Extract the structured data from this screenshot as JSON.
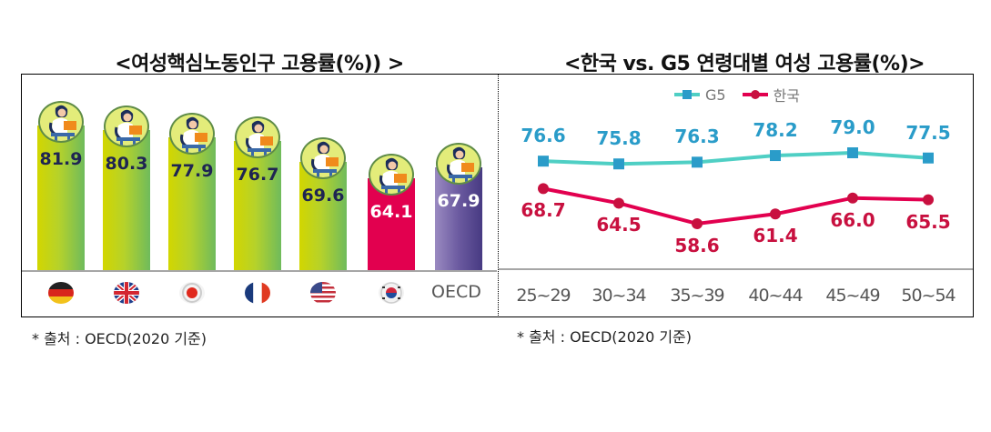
{
  "left_chart": {
    "title": "<여성핵심노동인구 고용률(%)) >",
    "source": "*  출처 : OECD(2020 기준)"
  },
  "right_chart": {
    "title": "<한국 vs. G5 연령대별 여성 고용률(%)>",
    "legend": {
      "g5": "G5",
      "korea": "한국"
    },
    "source": "*  출처 : OECD(2020 기준)"
  },
  "colors": {
    "green_bar_left": "#d2d600",
    "green_bar_right": "#6fbb5c",
    "korea_bar": "#e2004f",
    "oecd_bar": "#5b4b93",
    "g5_line": "#4fcfc4",
    "g5_marker": "#2a9cc9",
    "korea_line": "#e2004f",
    "korea_label": "#c8103f",
    "bar_label_dark": "#1e2452"
  },
  "chart_data": [
    {
      "type": "bar",
      "title": "<여성핵심노동인구 고용률(%)) >",
      "categories": [
        "Germany",
        "United Kingdom",
        "Japan",
        "France",
        "United States",
        "Korea",
        "OECD"
      ],
      "category_icons": [
        "germany-flag",
        "uk-flag",
        "japan-flag",
        "france-flag",
        "usa-flag",
        "korea-flag",
        "OECD"
      ],
      "values": [
        81.9,
        80.3,
        77.9,
        76.7,
        69.6,
        64.1,
        67.9
      ],
      "value_labels": [
        "81.9",
        "80.3",
        "77.9",
        "76.7",
        "69.6",
        "64.1",
        "67.9"
      ],
      "xlabel": "",
      "ylabel": "",
      "grid": false,
      "legend": null,
      "note": "*  출처 : OECD(2020 기준)"
    },
    {
      "type": "line",
      "title": "<한국 vs. G5 연령대별 여성 고용률(%)>",
      "categories": [
        "25~29",
        "30~34",
        "35~39",
        "40~44",
        "45~49",
        "50~54"
      ],
      "series": [
        {
          "name": "G5",
          "values": [
            76.6,
            75.8,
            76.3,
            78.2,
            79.0,
            77.5
          ],
          "labels": [
            "76.6",
            "75.8",
            "76.3",
            "78.2",
            "79.0",
            "77.5"
          ],
          "marker": "square"
        },
        {
          "name": "한국",
          "values": [
            68.7,
            64.5,
            58.6,
            61.4,
            66.0,
            65.5
          ],
          "labels": [
            "68.7",
            "64.5",
            "58.6",
            "61.4",
            "66.0",
            "65.5"
          ],
          "marker": "circle"
        }
      ],
      "xlabel": "",
      "ylabel": "",
      "grid": false,
      "legend_position": "top",
      "note": "*  출처 : OECD(2020 기준)"
    }
  ]
}
